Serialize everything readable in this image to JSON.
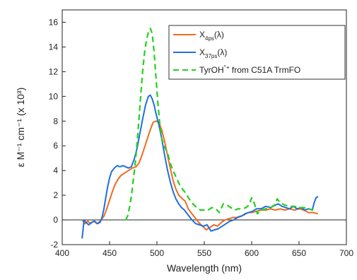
{
  "chart_data": {
    "type": "line",
    "title": "",
    "xlabel": "Wavelength (nm)",
    "ylabel": "ε M⁻¹ cm⁻¹ (x 10³)",
    "xlim": [
      400,
      700
    ],
    "ylim": [
      -2,
      17
    ],
    "xticks": [
      400,
      450,
      500,
      550,
      600,
      650,
      700
    ],
    "yticks": [
      -2,
      0,
      2,
      4,
      6,
      8,
      10,
      12,
      14,
      16
    ],
    "grid": false,
    "legend_position": "top-right",
    "zero_line": true,
    "series": [
      {
        "name": "X4ps(λ)",
        "name_main": "X",
        "name_sub": "4ps",
        "name_tail": "(λ)",
        "color": "#f26b1d",
        "dash": "solid",
        "points": [
          [
            421,
            0.0
          ],
          [
            424,
            -0.3
          ],
          [
            427,
            -0.1
          ],
          [
            430,
            -0.3
          ],
          [
            433,
            -0.1
          ],
          [
            437,
            -0.3
          ],
          [
            440,
            -0.1
          ],
          [
            444,
            0.3
          ],
          [
            447,
            0.9
          ],
          [
            450,
            1.6
          ],
          [
            453,
            2.3
          ],
          [
            456,
            2.9
          ],
          [
            459,
            3.3
          ],
          [
            462,
            3.6
          ],
          [
            466,
            3.8
          ],
          [
            470,
            4.0
          ],
          [
            474,
            4.2
          ],
          [
            478,
            4.3
          ],
          [
            481,
            4.6
          ],
          [
            484,
            5.2
          ],
          [
            487,
            5.9
          ],
          [
            490,
            6.6
          ],
          [
            493,
            7.3
          ],
          [
            496,
            7.9
          ],
          [
            499,
            8.0
          ],
          [
            502,
            7.9
          ],
          [
            505,
            7.3
          ],
          [
            508,
            6.4
          ],
          [
            511,
            5.3
          ],
          [
            514,
            4.2
          ],
          [
            517,
            3.2
          ],
          [
            520,
            2.5
          ],
          [
            523,
            2.0
          ],
          [
            527,
            1.7
          ],
          [
            530,
            1.5
          ],
          [
            533,
            0.9
          ],
          [
            536,
            0.6
          ],
          [
            540,
            0.2
          ],
          [
            544,
            -0.2
          ],
          [
            548,
            -0.5
          ],
          [
            552,
            -0.8
          ],
          [
            556,
            -0.6
          ],
          [
            560,
            -0.4
          ],
          [
            564,
            -0.5
          ],
          [
            568,
            -0.2
          ],
          [
            572,
            0.0
          ],
          [
            576,
            0.1
          ],
          [
            580,
            0.2
          ],
          [
            584,
            0.2
          ],
          [
            588,
            0.3
          ],
          [
            592,
            0.4
          ],
          [
            596,
            0.6
          ],
          [
            600,
            0.6
          ],
          [
            605,
            0.7
          ],
          [
            610,
            0.8
          ],
          [
            615,
            0.8
          ],
          [
            620,
            0.9
          ],
          [
            625,
            0.8
          ],
          [
            630,
            0.9
          ],
          [
            635,
            0.8
          ],
          [
            640,
            0.9
          ],
          [
            645,
            0.8
          ],
          [
            650,
            0.9
          ],
          [
            655,
            0.8
          ],
          [
            660,
            0.6
          ],
          [
            665,
            0.6
          ],
          [
            670,
            0.5
          ]
        ]
      },
      {
        "name": "X37ps(λ)",
        "name_main": "X",
        "name_sub": "37ps",
        "name_tail": "(λ)",
        "color": "#1f6fe0",
        "dash": "solid",
        "points": [
          [
            421,
            -1.5
          ],
          [
            422,
            -0.8
          ],
          [
            423,
            0.0
          ],
          [
            425,
            -0.2
          ],
          [
            428,
            -0.4
          ],
          [
            431,
            -0.2
          ],
          [
            434,
            -0.1
          ],
          [
            437,
            -0.3
          ],
          [
            440,
            -0.2
          ],
          [
            442,
            0.2
          ],
          [
            444,
            0.9
          ],
          [
            446,
            1.8
          ],
          [
            448,
            2.7
          ],
          [
            450,
            3.4
          ],
          [
            452,
            3.9
          ],
          [
            455,
            4.2
          ],
          [
            458,
            4.4
          ],
          [
            461,
            4.3
          ],
          [
            464,
            4.4
          ],
          [
            467,
            4.3
          ],
          [
            470,
            4.2
          ],
          [
            473,
            4.3
          ],
          [
            476,
            4.9
          ],
          [
            479,
            5.8
          ],
          [
            482,
            7.0
          ],
          [
            485,
            8.2
          ],
          [
            488,
            9.3
          ],
          [
            491,
            10.0
          ],
          [
            493,
            10.1
          ],
          [
            495,
            9.8
          ],
          [
            497,
            9.3
          ],
          [
            499,
            8.6
          ],
          [
            502,
            7.7
          ],
          [
            505,
            6.6
          ],
          [
            508,
            5.3
          ],
          [
            511,
            4.1
          ],
          [
            514,
            3.1
          ],
          [
            517,
            2.3
          ],
          [
            520,
            1.7
          ],
          [
            523,
            1.3
          ],
          [
            526,
            1.0
          ],
          [
            529,
            0.8
          ],
          [
            533,
            0.4
          ],
          [
            537,
            0.0
          ],
          [
            541,
            -0.3
          ],
          [
            545,
            -0.4
          ],
          [
            549,
            -0.5
          ],
          [
            553,
            -0.4
          ],
          [
            557,
            -0.9
          ],
          [
            561,
            -0.8
          ],
          [
            565,
            -0.7
          ],
          [
            569,
            -0.5
          ],
          [
            573,
            -0.3
          ],
          [
            577,
            -0.1
          ],
          [
            581,
            0.0
          ],
          [
            585,
            0.2
          ],
          [
            589,
            0.3
          ],
          [
            593,
            0.5
          ],
          [
            597,
            0.6
          ],
          [
            601,
            0.7
          ],
          [
            605,
            0.9
          ],
          [
            610,
            0.9
          ],
          [
            615,
            1.1
          ],
          [
            620,
            1.0
          ],
          [
            625,
            1.2
          ],
          [
            628,
            1.3
          ],
          [
            632,
            1.1
          ],
          [
            636,
            1.0
          ],
          [
            640,
            0.9
          ],
          [
            644,
            1.1
          ],
          [
            648,
            0.9
          ],
          [
            652,
            1.0
          ],
          [
            656,
            0.8
          ],
          [
            660,
            0.9
          ],
          [
            664,
            0.8
          ],
          [
            666,
            1.4
          ],
          [
            668,
            1.8
          ],
          [
            670,
            1.9
          ]
        ]
      },
      {
        "name": "TyrOH°+ from C51A TrmFO",
        "name_main": "TyrOH",
        "name_sup": "°+",
        "name_tail": " from C51A TrmFO",
        "color": "#22d11d",
        "dash": "dashed",
        "points": [
          [
            467,
            0.0
          ],
          [
            469,
            0.3
          ],
          [
            471,
            1.0
          ],
          [
            473,
            1.9
          ],
          [
            475,
            3.2
          ],
          [
            477,
            4.5
          ],
          [
            479,
            6.2
          ],
          [
            481,
            8.1
          ],
          [
            483,
            10.2
          ],
          [
            485,
            12.1
          ],
          [
            487,
            13.6
          ],
          [
            489,
            14.6
          ],
          [
            491,
            15.2
          ],
          [
            493,
            15.5
          ],
          [
            495,
            15.1
          ],
          [
            497,
            13.6
          ],
          [
            499,
            11.5
          ],
          [
            501,
            9.5
          ],
          [
            503,
            7.8
          ],
          [
            505,
            6.6
          ],
          [
            508,
            5.9
          ],
          [
            511,
            5.5
          ],
          [
            514,
            4.6
          ],
          [
            517,
            4.0
          ],
          [
            520,
            3.5
          ],
          [
            523,
            3.0
          ],
          [
            526,
            2.6
          ],
          [
            530,
            2.2
          ],
          [
            534,
            1.7
          ],
          [
            538,
            1.3
          ],
          [
            542,
            1.0
          ],
          [
            546,
            0.8
          ],
          [
            550,
            0.8
          ],
          [
            554,
            0.8
          ],
          [
            558,
            1.0
          ],
          [
            562,
            0.9
          ],
          [
            566,
            0.6
          ],
          [
            570,
            1.3
          ],
          [
            574,
            1.2
          ],
          [
            578,
            1.0
          ],
          [
            582,
            0.8
          ],
          [
            586,
            0.9
          ],
          [
            590,
            0.9
          ],
          [
            594,
            1.0
          ],
          [
            597,
            1.2
          ],
          [
            600,
            1.8
          ],
          [
            603,
            1.3
          ],
          [
            606,
            0.5
          ],
          [
            610,
            0.8
          ],
          [
            615,
            0.9
          ],
          [
            620,
            1.0
          ],
          [
            624,
            1.2
          ],
          [
            627,
            1.7
          ],
          [
            630,
            1.4
          ],
          [
            635,
            1.2
          ],
          [
            640,
            1.1
          ],
          [
            645,
            1.1
          ],
          [
            650,
            1.0
          ],
          [
            655,
            1.0
          ],
          [
            660,
            0.9
          ],
          [
            665,
            0.8
          ]
        ]
      }
    ]
  }
}
